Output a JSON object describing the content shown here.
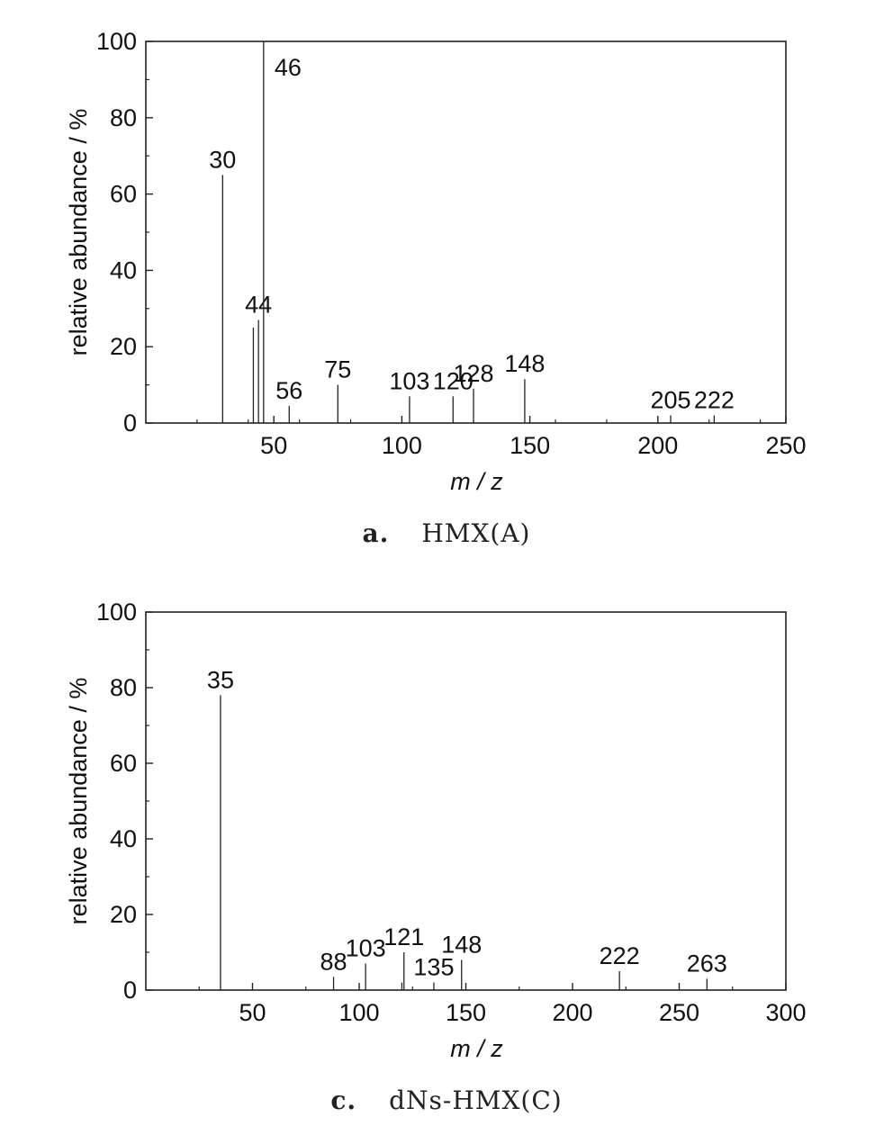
{
  "chart_data": [
    {
      "type": "bar",
      "caption_letter": "a.",
      "caption_text": "HMX(A)",
      "xlabel": "m / z",
      "ylabel": "relative abundance / %",
      "xlim": [
        0,
        250
      ],
      "ylim": [
        0,
        100
      ],
      "xticks": [
        50,
        100,
        150,
        200,
        250
      ],
      "yticks": [
        0,
        20,
        40,
        60,
        80,
        100
      ],
      "peaks": [
        {
          "x": 30,
          "y": 65,
          "label": "30"
        },
        {
          "x": 42,
          "y": 25,
          "label": ""
        },
        {
          "x": 44,
          "y": 27,
          "label": "44"
        },
        {
          "x": 46,
          "y": 100,
          "label": "46"
        },
        {
          "x": 56,
          "y": 4.5,
          "label": "56"
        },
        {
          "x": 75,
          "y": 10,
          "label": "75"
        },
        {
          "x": 103,
          "y": 7,
          "label": "103"
        },
        {
          "x": 120,
          "y": 7,
          "label": "120"
        },
        {
          "x": 128,
          "y": 9,
          "label": "128"
        },
        {
          "x": 148,
          "y": 11.5,
          "label": "148"
        },
        {
          "x": 205,
          "y": 2,
          "label": "205"
        },
        {
          "x": 222,
          "y": 2,
          "label": "222"
        }
      ]
    },
    {
      "type": "bar",
      "caption_letter": "c.",
      "caption_text": "dNs-HMX(C)",
      "xlabel": "m / z",
      "ylabel": "relative abundance / %",
      "xlim": [
        0,
        300
      ],
      "ylim": [
        0,
        100
      ],
      "xticks": [
        50,
        100,
        150,
        200,
        250,
        300
      ],
      "yticks": [
        0,
        20,
        40,
        60,
        80,
        100
      ],
      "peaks": [
        {
          "x": 35,
          "y": 78,
          "label": "35"
        },
        {
          "x": 88,
          "y": 3.5,
          "label": "88"
        },
        {
          "x": 103,
          "y": 7,
          "label": "103"
        },
        {
          "x": 120,
          "y": 2,
          "label": ""
        },
        {
          "x": 121,
          "y": 10,
          "label": "121"
        },
        {
          "x": 135,
          "y": 2,
          "label": "135"
        },
        {
          "x": 148,
          "y": 8,
          "label": "148"
        },
        {
          "x": 222,
          "y": 5,
          "label": "222"
        },
        {
          "x": 263,
          "y": 3,
          "label": "263"
        }
      ]
    }
  ]
}
